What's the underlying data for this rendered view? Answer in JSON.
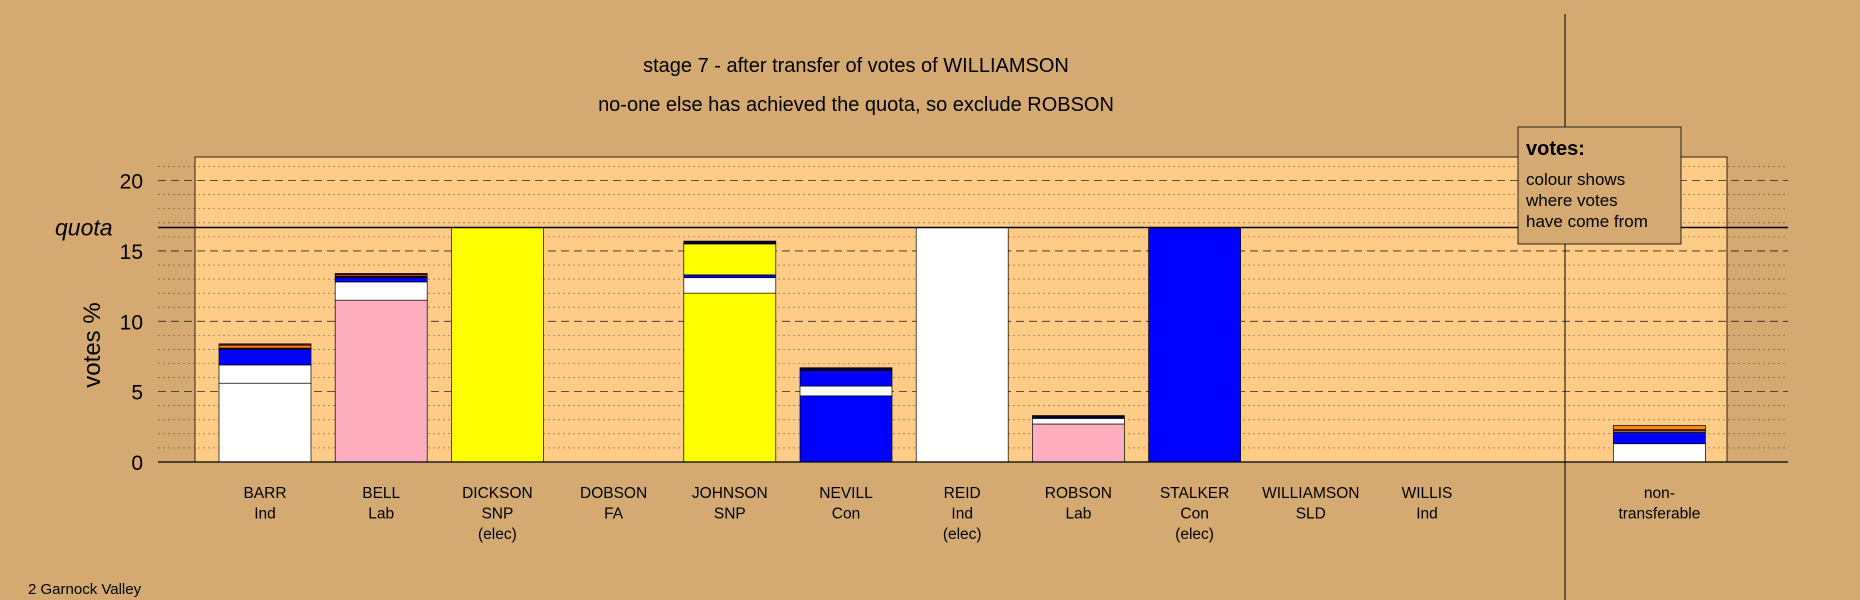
{
  "title": "stage 7 - after transfer of votes of WILLIAMSON",
  "subtitle": "no-one else has achieved the quota, so exclude ROBSON",
  "footer": "2 Garnock Valley",
  "legend": {
    "heading": "votes:",
    "lines": [
      "colour shows",
      "where votes",
      "have come from"
    ]
  },
  "colors": {
    "page_background": "#d4a972",
    "plot_background": "#ffcc88",
    "Ind": "#ffffff",
    "Lab": "#ffaec0",
    "SNP": "#ffff00",
    "Con": "#0000ff",
    "FA": "#8b0000",
    "SLD": "#ff8c00",
    "dark": "#000033"
  },
  "chart_data": {
    "type": "bar",
    "stacked": true,
    "title": "stage 7 - after transfer of votes of WILLIAMSON",
    "subtitle": "no-one else has achieved the quota, so exclude ROBSON",
    "ylabel": "votes %",
    "ylim": [
      0,
      21.7
    ],
    "yticks": [
      0,
      5,
      10,
      15,
      20
    ],
    "quota": 16.67,
    "quota_label": "quota",
    "gridlines": "dashed major every 5, dotted minor every 1",
    "categories": [
      {
        "name": "BARR",
        "party": "Ind",
        "status": ""
      },
      {
        "name": "BELL",
        "party": "Lab",
        "status": ""
      },
      {
        "name": "DICKSON",
        "party": "SNP",
        "status": "(elec)"
      },
      {
        "name": "DOBSON",
        "party": "FA",
        "status": ""
      },
      {
        "name": "JOHNSON",
        "party": "SNP",
        "status": ""
      },
      {
        "name": "NEVILL",
        "party": "Con",
        "status": ""
      },
      {
        "name": "REID",
        "party": "Ind",
        "status": "(elec)"
      },
      {
        "name": "ROBSON",
        "party": "Lab",
        "status": ""
      },
      {
        "name": "STALKER",
        "party": "Con",
        "status": "(elec)"
      },
      {
        "name": "WILLIAMSON",
        "party": "SLD",
        "status": ""
      },
      {
        "name": "WILLIS",
        "party": "Ind",
        "status": ""
      },
      {
        "name": "",
        "party": "",
        "status": ""
      },
      {
        "name": "non-",
        "party": "transferable",
        "status": ""
      }
    ],
    "stacks": [
      [
        {
          "c": "Ind",
          "v": 5.6
        },
        {
          "c": "Ind",
          "v": 1.3
        },
        {
          "c": "Con",
          "v": 1.1
        },
        {
          "c": "dark",
          "v": 0.1
        },
        {
          "c": "SLD",
          "v": 0.2
        },
        {
          "c": "FA",
          "v": 0.1
        }
      ],
      [
        {
          "c": "Lab",
          "v": 11.5
        },
        {
          "c": "Ind",
          "v": 1.3
        },
        {
          "c": "Con",
          "v": 0.3
        },
        {
          "c": "dark",
          "v": 0.1
        },
        {
          "c": "SLD",
          "v": 0.1
        },
        {
          "c": "FA",
          "v": 0.1
        }
      ],
      [
        {
          "c": "SNP",
          "v": 16.67
        }
      ],
      [],
      [
        {
          "c": "SNP",
          "v": 12.0
        },
        {
          "c": "Ind",
          "v": 1.1
        },
        {
          "c": "Con",
          "v": 0.2
        },
        {
          "c": "SNP",
          "v": 2.2
        },
        {
          "c": "dark",
          "v": 0.2
        }
      ],
      [
        {
          "c": "Con",
          "v": 4.7
        },
        {
          "c": "Ind",
          "v": 0.7
        },
        {
          "c": "Con",
          "v": 1.1
        },
        {
          "c": "dark",
          "v": 0.2
        }
      ],
      [
        {
          "c": "Ind",
          "v": 16.67
        }
      ],
      [
        {
          "c": "Lab",
          "v": 2.7
        },
        {
          "c": "Ind",
          "v": 0.4
        },
        {
          "c": "dark",
          "v": 0.2
        }
      ],
      [
        {
          "c": "Con",
          "v": 16.67
        }
      ],
      [],
      [],
      [],
      [
        {
          "c": "Ind",
          "v": 1.3
        },
        {
          "c": "Con",
          "v": 0.8
        },
        {
          "c": "SNP",
          "v": 0.1
        },
        {
          "c": "FA",
          "v": 0.1
        },
        {
          "c": "SLD",
          "v": 0.3
        }
      ]
    ]
  }
}
